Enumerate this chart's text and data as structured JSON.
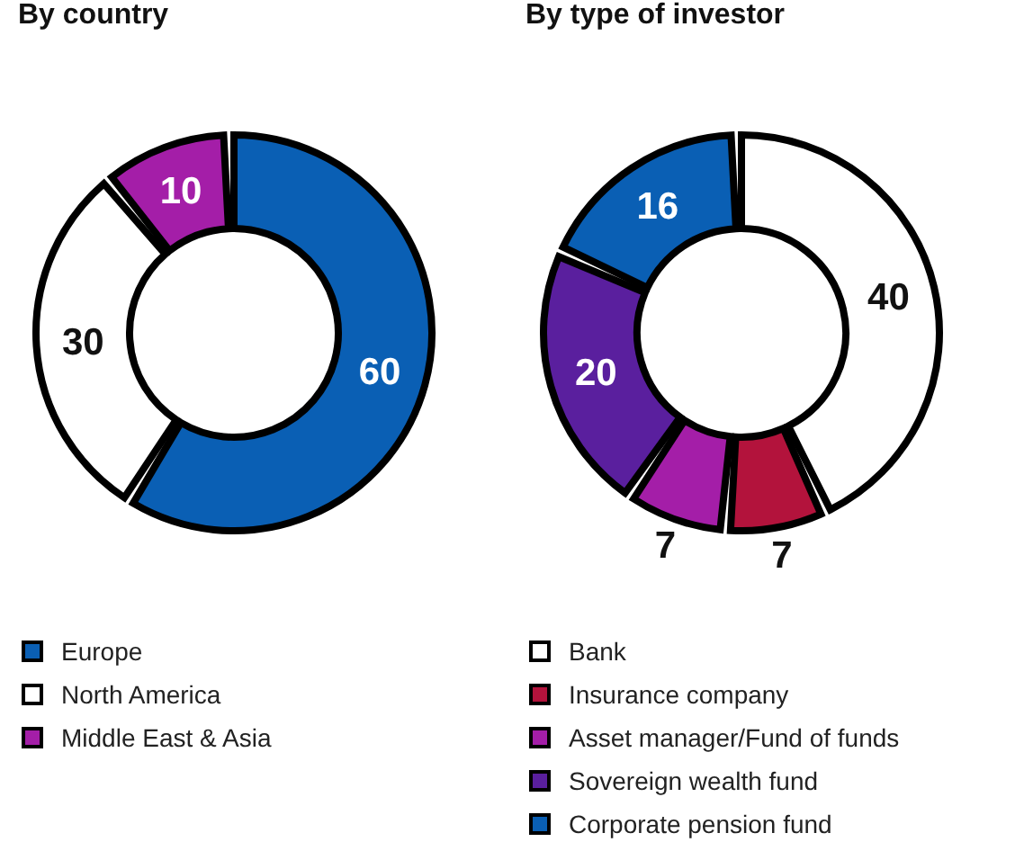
{
  "chart_data": [
    {
      "type": "donut",
      "title": "By country",
      "categories": [
        "Europe",
        "North America",
        "Middle East & Asia"
      ],
      "values": [
        60,
        30,
        10
      ],
      "colors": [
        "#0a5fb4",
        "#ffffff",
        "#a41ea8"
      ],
      "legend": "bottom",
      "data_labels": true
    },
    {
      "type": "donut",
      "title": "By type of investor",
      "categories": [
        "Bank",
        "Insurance company",
        "Asset manager/Fund of funds",
        "Sovereign wealth fund",
        "Corporate pension fund"
      ],
      "values": [
        40,
        7,
        7,
        20,
        16
      ],
      "colors": [
        "#ffffff",
        "#b3133c",
        "#a41ea8",
        "#5a1f9e",
        "#0a5fb4"
      ],
      "legend": "bottom",
      "data_labels": true
    }
  ]
}
